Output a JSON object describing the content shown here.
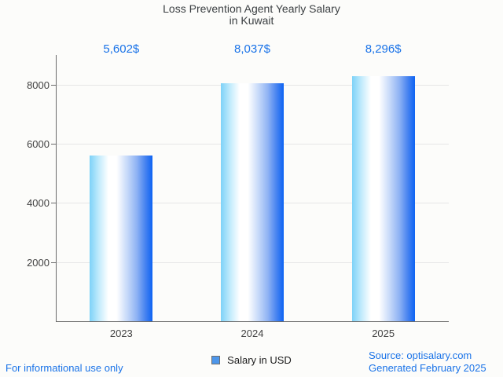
{
  "title": {
    "line1": "Loss Prevention Agent Yearly Salary",
    "line2": "in Kuwait"
  },
  "chart_data": {
    "type": "bar",
    "title": "Loss Prevention Agent Yearly Salary in Kuwait",
    "categories": [
      "2023",
      "2024",
      "2025"
    ],
    "values": [
      5602,
      8037,
      8296
    ],
    "value_labels": [
      "5,602$",
      "8,037$",
      "8,296$"
    ],
    "series_name": "Salary in USD",
    "xlabel": "",
    "ylabel": "",
    "ylim": [
      0,
      9000
    ],
    "yticks": [
      2000,
      4000,
      6000,
      8000
    ],
    "grid": "horizontal-only",
    "legend_position": "bottom-center",
    "bar_color_gradient": [
      "#7dd2f8",
      "#ffffff",
      "#0d63f3"
    ]
  },
  "legend": {
    "label": "Salary in USD",
    "swatch_fill": "#4d96ea",
    "swatch_border": "#6e6e6e"
  },
  "footer": {
    "left_note": "For informational use only",
    "source": "Source: optisalary.com",
    "generated": "Generated February 2025"
  },
  "colors": {
    "background": "#fcfcfa",
    "value_label_blue": "#1a73e8",
    "title_text": "#3c4043",
    "axis_text": "#424242",
    "axis_line": "#6b6b6b",
    "gridline": "#e6e6e6",
    "footer_text": "#1a73e8"
  }
}
